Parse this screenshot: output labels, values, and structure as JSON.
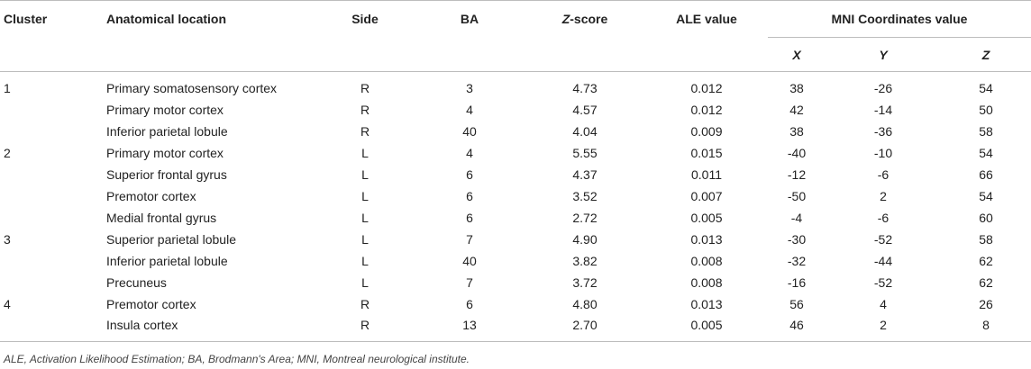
{
  "headers": {
    "cluster": "Cluster",
    "location": "Anatomical location",
    "side": "Side",
    "ba": "BA",
    "z_score_letter": "Z",
    "z_score_rest": "-score",
    "ale": "ALE value",
    "mni": "MNI Coordinates value",
    "x": "X",
    "y": "Y",
    "z": "Z"
  },
  "rows": [
    {
      "cluster": "1",
      "location": "Primary somatosensory cortex",
      "side": "R",
      "ba": "3",
      "z_score": "4.73",
      "ale": "0.012",
      "x": "38",
      "y": "-26",
      "z": "54"
    },
    {
      "cluster": "",
      "location": "Primary motor cortex",
      "side": "R",
      "ba": "4",
      "z_score": "4.57",
      "ale": "0.012",
      "x": "42",
      "y": "-14",
      "z": "50"
    },
    {
      "cluster": "",
      "location": "Inferior parietal lobule",
      "side": "R",
      "ba": "40",
      "z_score": "4.04",
      "ale": "0.009",
      "x": "38",
      "y": "-36",
      "z": "58"
    },
    {
      "cluster": "2",
      "location": "Primary motor cortex",
      "side": "L",
      "ba": "4",
      "z_score": "5.55",
      "ale": "0.015",
      "x": "-40",
      "y": "-10",
      "z": "54"
    },
    {
      "cluster": "",
      "location": "Superior frontal gyrus",
      "side": "L",
      "ba": "6",
      "z_score": "4.37",
      "ale": "0.011",
      "x": "-12",
      "y": "-6",
      "z": "66"
    },
    {
      "cluster": "",
      "location": "Premotor cortex",
      "side": "L",
      "ba": "6",
      "z_score": "3.52",
      "ale": "0.007",
      "x": "-50",
      "y": "2",
      "z": "54"
    },
    {
      "cluster": "",
      "location": "Medial frontal gyrus",
      "side": "L",
      "ba": "6",
      "z_score": "2.72",
      "ale": "0.005",
      "x": "-4",
      "y": "-6",
      "z": "60"
    },
    {
      "cluster": "3",
      "location": "Superior parietal lobule",
      "side": "L",
      "ba": "7",
      "z_score": "4.90",
      "ale": "0.013",
      "x": "-30",
      "y": "-52",
      "z": "58"
    },
    {
      "cluster": "",
      "location": "Inferior parietal lobule",
      "side": "L",
      "ba": "40",
      "z_score": "3.82",
      "ale": "0.008",
      "x": "-32",
      "y": "-44",
      "z": "62"
    },
    {
      "cluster": "",
      "location": "Precuneus",
      "side": "L",
      "ba": "7",
      "z_score": "3.72",
      "ale": "0.008",
      "x": "-16",
      "y": "-52",
      "z": "62"
    },
    {
      "cluster": "4",
      "location": "Premotor cortex",
      "side": "R",
      "ba": "6",
      "z_score": "4.80",
      "ale": "0.013",
      "x": "56",
      "y": "4",
      "z": "26"
    },
    {
      "cluster": "",
      "location": "Insula cortex",
      "side": "R",
      "ba": "13",
      "z_score": "2.70",
      "ale": "0.005",
      "x": "46",
      "y": "2",
      "z": "8"
    }
  ],
  "footnote": "ALE, Activation Likelihood Estimation; BA, Brodmann's Area; MNI, Montreal neurological institute."
}
